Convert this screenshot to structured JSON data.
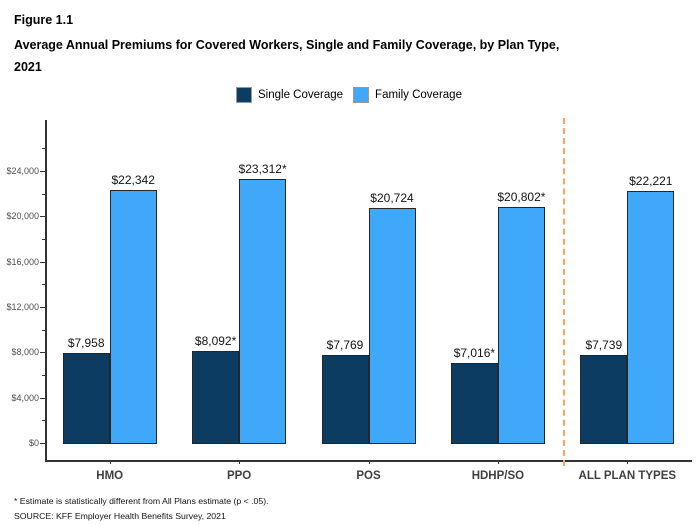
{
  "header": {
    "figure_label": "Figure 1.1",
    "title_line1": "Average Annual Premiums for Covered Workers, Single and Family Coverage, by Plan Type,",
    "title_line2": "2021"
  },
  "chart_data": {
    "type": "bar",
    "title": "Average Annual Premiums for Covered Workers, Single and Family Coverage, by Plan Type, 2021",
    "categories": [
      "HMO",
      "PPO",
      "POS",
      "HDHP/SO",
      "ALL PLAN TYPES"
    ],
    "series": [
      {
        "name": "Single Coverage",
        "color": "#0c3c61",
        "values": [
          7958,
          8092,
          7769,
          7016,
          7739
        ],
        "labels": [
          "$7,958",
          "$8,092*",
          "$7,769",
          "$7,016*",
          "$7,739"
        ]
      },
      {
        "name": "Family Coverage",
        "color": "#3fa8f8",
        "values": [
          22342,
          23312,
          20724,
          20802,
          22221
        ],
        "labels": [
          "$22,342",
          "$23,312*",
          "$20,724",
          "$20,802*",
          "$22,221"
        ]
      }
    ],
    "y_axis": {
      "min": 0,
      "max": 26000,
      "major_tick_step": 4000,
      "minor_tick_step": 2000,
      "tick_labels": [
        "$0",
        "$4,000",
        "$8,000",
        "$12,000",
        "$16,000",
        "$20,000",
        "$24,000"
      ]
    },
    "separator": {
      "after_category_index": 3,
      "color": "#f9a65c",
      "style": "dashed"
    },
    "grid": false,
    "legend_position": "top",
    "xlabel": "",
    "ylabel": ""
  },
  "footnotes": {
    "line1": "* Estimate is statistically different from All Plans estimate (p < .05).",
    "line2": "SOURCE: KFF Employer Health Benefits Survey, 2021"
  }
}
